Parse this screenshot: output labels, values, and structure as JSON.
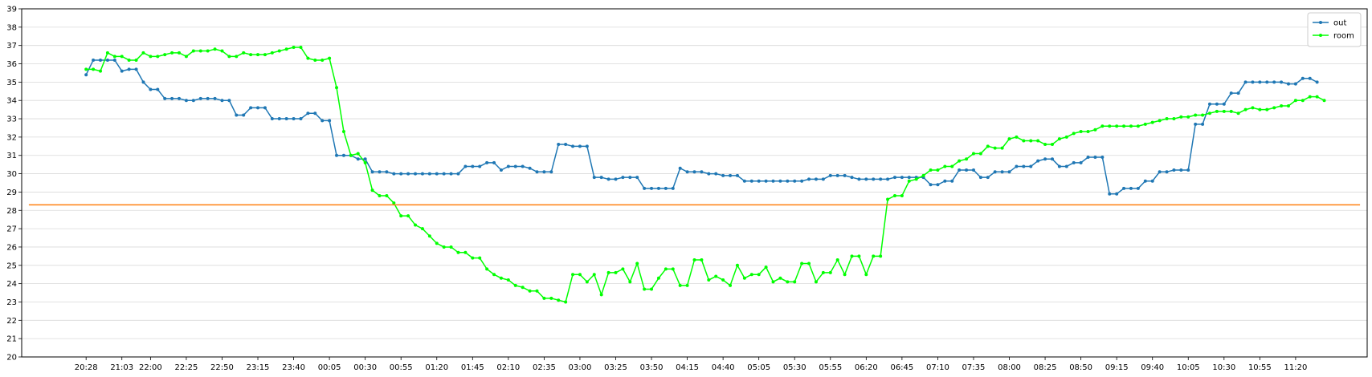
{
  "chart_data": {
    "type": "line",
    "title": "",
    "xlabel": "",
    "ylabel": "",
    "ylim": [
      20,
      39
    ],
    "y_ticks": [
      20,
      21,
      22,
      23,
      24,
      25,
      26,
      27,
      28,
      29,
      30,
      31,
      32,
      33,
      34,
      35,
      36,
      37,
      38,
      39
    ],
    "grid": "horizontal",
    "legend_position": "top-right",
    "x_tick_labels": [
      "20:28",
      "21:03",
      "22:00",
      "22:25",
      "22:50",
      "23:15",
      "23:40",
      "00:05",
      "00:30",
      "00:55",
      "01:20",
      "01:45",
      "02:10",
      "02:35",
      "03:00",
      "03:25",
      "03:50",
      "04:15",
      "04:40",
      "05:05",
      "05:30",
      "05:55",
      "06:20",
      "06:45",
      "07:10",
      "07:35",
      "08:00",
      "08:25",
      "08:50",
      "09:15",
      "09:40",
      "10:05",
      "10:30",
      "10:55",
      "11:20"
    ],
    "x_tick_index": [
      0,
      5,
      9,
      14,
      19,
      24,
      29,
      34,
      39,
      44,
      49,
      54,
      59,
      64,
      69,
      74,
      79,
      84,
      89,
      94,
      99,
      104,
      109,
      114,
      119,
      124,
      129,
      134,
      139,
      144,
      149,
      154,
      159,
      164,
      169
    ],
    "x_range": [
      -9,
      179
    ],
    "series": [
      {
        "name": "out",
        "color": "#1f77b4",
        "marker": "dot",
        "values": [
          35.4,
          36.2,
          36.2,
          36.2,
          36.2,
          35.6,
          35.7,
          35.7,
          35.0,
          34.6,
          34.6,
          34.1,
          34.1,
          34.1,
          34.0,
          34.0,
          34.1,
          34.1,
          34.1,
          34.0,
          34.0,
          33.2,
          33.2,
          33.6,
          33.6,
          33.6,
          33.0,
          33.0,
          33.0,
          33.0,
          33.0,
          33.3,
          33.3,
          32.9,
          32.9,
          31.0,
          31.0,
          31.0,
          30.8,
          30.8,
          30.1,
          30.1,
          30.1,
          30.0,
          30.0,
          30.0,
          30.0,
          30.0,
          30.0,
          30.0,
          30.0,
          30.0,
          30.0,
          30.4,
          30.4,
          30.4,
          30.6,
          30.6,
          30.2,
          30.4,
          30.4,
          30.4,
          30.3,
          30.1,
          30.1,
          30.1,
          31.6,
          31.6,
          31.5,
          31.5,
          31.5,
          29.8,
          29.8,
          29.7,
          29.7,
          29.8,
          29.8,
          29.8,
          29.2,
          29.2,
          29.2,
          29.2,
          29.2,
          30.3,
          30.1,
          30.1,
          30.1,
          30.0,
          30.0,
          29.9,
          29.9,
          29.9,
          29.6,
          29.6,
          29.6,
          29.6,
          29.6,
          29.6,
          29.6,
          29.6,
          29.6,
          29.7,
          29.7,
          29.7,
          29.9,
          29.9,
          29.9,
          29.8,
          29.7,
          29.7,
          29.7,
          29.7,
          29.7,
          29.8,
          29.8,
          29.8,
          29.8,
          29.8,
          29.4,
          29.4,
          29.6,
          29.6,
          30.2,
          30.2,
          30.2,
          29.8,
          29.8,
          30.1,
          30.1,
          30.1,
          30.4,
          30.4,
          30.4,
          30.7,
          30.8,
          30.8,
          30.4,
          30.4,
          30.6,
          30.6,
          30.9,
          30.9,
          30.9,
          28.9,
          28.9,
          29.2,
          29.2,
          29.2,
          29.6,
          29.6,
          30.1,
          30.1,
          30.2,
          30.2,
          30.2,
          32.7,
          32.7,
          33.8,
          33.8,
          33.8,
          34.4,
          34.4,
          35.0,
          35.0,
          35.0,
          35.0,
          35.0,
          35.0,
          34.9,
          34.9,
          35.2,
          35.2,
          35.0
        ]
      },
      {
        "name": "room",
        "color": "#00ff00",
        "marker": "dot",
        "values": [
          35.7,
          35.7,
          35.6,
          36.6,
          36.4,
          36.4,
          36.2,
          36.2,
          36.6,
          36.4,
          36.4,
          36.5,
          36.6,
          36.6,
          36.4,
          36.7,
          36.7,
          36.7,
          36.8,
          36.7,
          36.4,
          36.4,
          36.6,
          36.5,
          36.5,
          36.5,
          36.6,
          36.7,
          36.8,
          36.9,
          36.9,
          36.3,
          36.2,
          36.2,
          36.3,
          34.7,
          32.3,
          31.0,
          31.1,
          30.6,
          29.1,
          28.8,
          28.8,
          28.4,
          27.7,
          27.7,
          27.2,
          27.0,
          26.6,
          26.2,
          26.0,
          26.0,
          25.7,
          25.7,
          25.4,
          25.4,
          24.8,
          24.5,
          24.3,
          24.2,
          23.9,
          23.8,
          23.6,
          23.6,
          23.2,
          23.2,
          23.1,
          23.0,
          24.5,
          24.5,
          24.1,
          24.5,
          23.4,
          24.6,
          24.6,
          24.8,
          24.1,
          25.1,
          23.7,
          23.7,
          24.3,
          24.8,
          24.8,
          23.9,
          23.9,
          25.3,
          25.3,
          24.2,
          24.4,
          24.2,
          23.9,
          25.0,
          24.3,
          24.5,
          24.5,
          24.9,
          24.1,
          24.3,
          24.1,
          24.1,
          25.1,
          25.1,
          24.1,
          24.6,
          24.6,
          25.3,
          24.5,
          25.5,
          25.5,
          24.5,
          25.5,
          25.5,
          28.6,
          28.8,
          28.8,
          29.6,
          29.7,
          29.9,
          30.2,
          30.2,
          30.4,
          30.4,
          30.7,
          30.8,
          31.1,
          31.1,
          31.5,
          31.4,
          31.4,
          31.9,
          32.0,
          31.8,
          31.8,
          31.8,
          31.6,
          31.6,
          31.9,
          32.0,
          32.2,
          32.3,
          32.3,
          32.4,
          32.6,
          32.6,
          32.6,
          32.6,
          32.6,
          32.6,
          32.7,
          32.8,
          32.9,
          33.0,
          33.0,
          33.1,
          33.1,
          33.2,
          33.2,
          33.3,
          33.4,
          33.4,
          33.4,
          33.3,
          33.5,
          33.6,
          33.5,
          33.5,
          33.6,
          33.7,
          33.7,
          34.0,
          34.0,
          34.2,
          34.2,
          34.0
        ]
      },
      {
        "name": "",
        "color": "#ff7f0e",
        "marker": "none",
        "x_span": [
          -8,
          178
        ],
        "values": [
          28.3,
          28.3
        ]
      }
    ]
  }
}
